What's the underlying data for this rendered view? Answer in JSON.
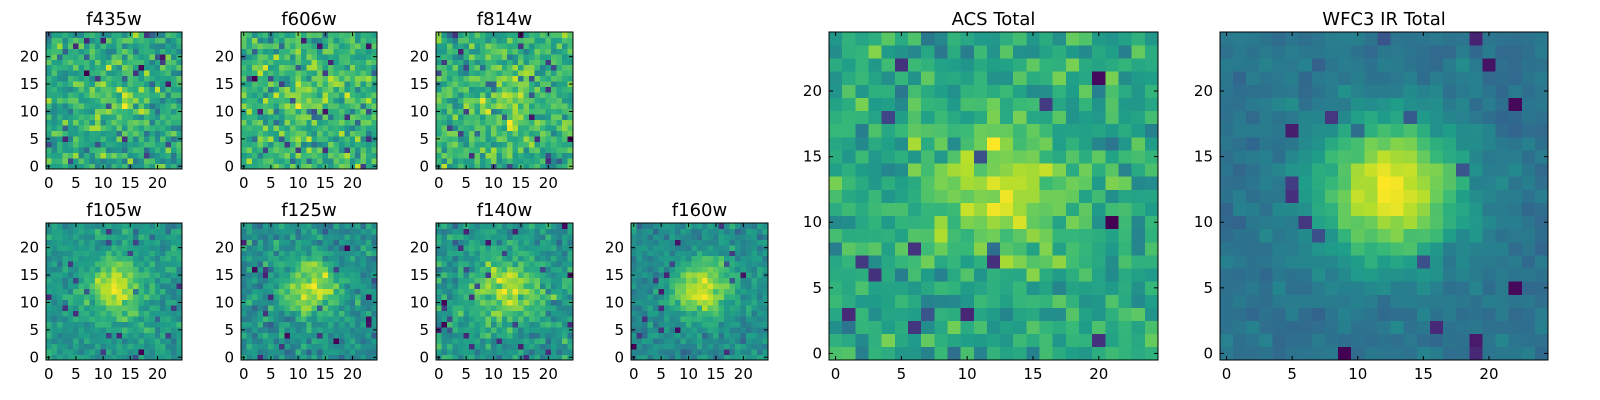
{
  "chart_data": [
    {
      "type": "heatmap",
      "title": "f435w",
      "colormap": "viridis",
      "grid_size": 25,
      "seed": 11,
      "peak": 0.15,
      "noise": 1.0,
      "xticks": [
        0,
        5,
        10,
        15,
        20
      ],
      "yticks": [
        0,
        5,
        10,
        15,
        20
      ],
      "xlim": [
        0,
        24
      ],
      "ylim": [
        0,
        24
      ]
    },
    {
      "type": "heatmap",
      "title": "f606w",
      "colormap": "viridis",
      "grid_size": 25,
      "seed": 23,
      "peak": 0.15,
      "noise": 1.0,
      "xticks": [
        0,
        5,
        10,
        15,
        20
      ],
      "yticks": [
        0,
        5,
        10,
        15,
        20
      ],
      "xlim": [
        0,
        24
      ],
      "ylim": [
        0,
        24
      ]
    },
    {
      "type": "heatmap",
      "title": "f814w",
      "colormap": "viridis",
      "grid_size": 25,
      "seed": 37,
      "peak": 0.2,
      "noise": 1.0,
      "xticks": [
        0,
        5,
        10,
        15,
        20
      ],
      "yticks": [
        0,
        5,
        10,
        15,
        20
      ],
      "xlim": [
        0,
        24
      ],
      "ylim": [
        0,
        24
      ]
    },
    {
      "type": "heatmap",
      "title": "f105w",
      "colormap": "viridis",
      "grid_size": 25,
      "seed": 41,
      "peak": 0.5,
      "noise": 0.75,
      "xticks": [
        0,
        5,
        10,
        15,
        20
      ],
      "yticks": [
        0,
        5,
        10,
        15,
        20
      ],
      "xlim": [
        0,
        24
      ],
      "ylim": [
        0,
        24
      ]
    },
    {
      "type": "heatmap",
      "title": "f125w",
      "colormap": "viridis",
      "grid_size": 25,
      "seed": 53,
      "peak": 0.45,
      "noise": 0.8,
      "xticks": [
        0,
        5,
        10,
        15,
        20
      ],
      "yticks": [
        0,
        5,
        10,
        15,
        20
      ],
      "xlim": [
        0,
        24
      ],
      "ylim": [
        0,
        24
      ]
    },
    {
      "type": "heatmap",
      "title": "f140w",
      "colormap": "viridis",
      "grid_size": 25,
      "seed": 67,
      "peak": 0.45,
      "noise": 0.8,
      "xticks": [
        0,
        5,
        10,
        15,
        20
      ],
      "yticks": [
        0,
        5,
        10,
        15,
        20
      ],
      "xlim": [
        0,
        24
      ],
      "ylim": [
        0,
        24
      ]
    },
    {
      "type": "heatmap",
      "title": "f160w",
      "colormap": "viridis",
      "grid_size": 25,
      "seed": 79,
      "peak": 0.6,
      "noise": 0.7,
      "xticks": [
        0,
        5,
        10,
        15,
        20
      ],
      "yticks": [
        0,
        5,
        10,
        15,
        20
      ],
      "xlim": [
        0,
        24
      ],
      "ylim": [
        0,
        24
      ]
    },
    {
      "type": "heatmap",
      "title": "ACS Total",
      "colormap": "viridis",
      "grid_size": 25,
      "seed": 97,
      "peak": 0.35,
      "noise": 0.75,
      "xticks": [
        0,
        5,
        10,
        15,
        20
      ],
      "yticks": [
        0,
        5,
        10,
        15,
        20
      ],
      "xlim": [
        0,
        24
      ],
      "ylim": [
        0,
        24
      ]
    },
    {
      "type": "heatmap",
      "title": "WFC3 IR Total",
      "colormap": "viridis",
      "grid_size": 25,
      "seed": 131,
      "peak": 1.0,
      "noise": 0.45,
      "xticks": [
        0,
        5,
        10,
        15,
        20
      ],
      "yticks": [
        0,
        5,
        10,
        15,
        20
      ],
      "xlim": [
        0,
        24
      ],
      "ylim": [
        0,
        24
      ]
    }
  ]
}
